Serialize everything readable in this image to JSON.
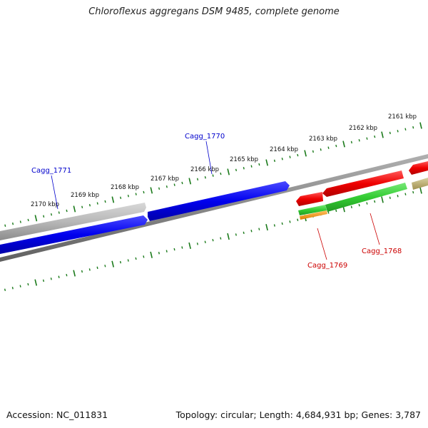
{
  "title": "Chloroflexus aggregans DSM 9485, complete genome",
  "footer": {
    "accession": "Accession: NC_011831",
    "info": "Topology: circular; Length: 4,684,931 bp; Genes: 3,787"
  },
  "scale_labels": [
    "2161 kbp",
    "2162 kbp",
    "2163 kbp",
    "2164 kbp",
    "2165 kbp",
    "2166 kbp",
    "2167 kbp",
    "2168 kbp",
    "2169 kbp",
    "2170 kbp"
  ],
  "gene_labels": [
    {
      "name": "Cagg_1771",
      "color": "#0000cc"
    },
    {
      "name": "Cagg_1770",
      "color": "#0000cc"
    },
    {
      "name": "Cagg_1769",
      "color": "#cc0000"
    },
    {
      "name": "Cagg_1768",
      "color": "#cc0000"
    }
  ],
  "colors": {
    "tick": "#1a7a1a",
    "forward_cds": "#0000ee",
    "reverse_cds": "#ee0000",
    "gc_skew": "#33cc33",
    "gray_feature": "#b0b0b0",
    "orange_feature": "#ff9900",
    "olive_feature": "#b8b070",
    "backbone": "#808080"
  }
}
